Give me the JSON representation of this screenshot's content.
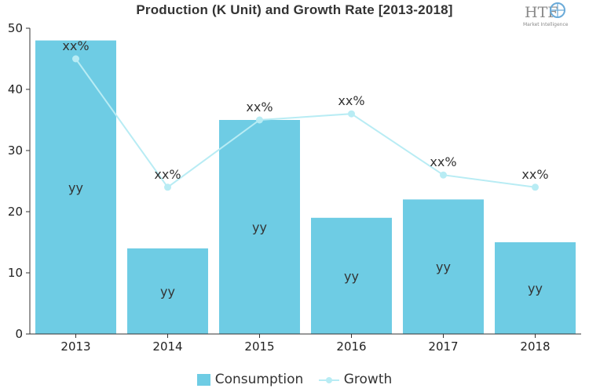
{
  "colors": {
    "bar": "#6ecce4",
    "line": "#b8ecf4",
    "axis": "#333333",
    "text": "#333333"
  },
  "logo": {
    "main": "HTF",
    "sub": "Market Intelligence"
  },
  "chart_data": {
    "type": "bar",
    "title": "Production (K Unit) and Growth Rate [2013-2018]",
    "categories": [
      "2013",
      "2014",
      "2015",
      "2016",
      "2017",
      "2018"
    ],
    "ylim": [
      0,
      50
    ],
    "yticks": [
      0,
      10,
      20,
      30,
      40,
      50
    ],
    "grid": false,
    "legend_position": "bottom",
    "series": [
      {
        "name": "Consumption",
        "kind": "bar",
        "values": [
          48,
          14,
          35,
          19,
          22,
          15
        ],
        "labels": [
          "yy",
          "yy",
          "yy",
          "yy",
          "yy",
          "yy"
        ]
      },
      {
        "name": "Growth",
        "kind": "line",
        "values": [
          45,
          24,
          35,
          36,
          26,
          24
        ],
        "labels": [
          "xx%",
          "xx%",
          "xx%",
          "xx%",
          "xx%",
          "xx%"
        ]
      }
    ]
  }
}
